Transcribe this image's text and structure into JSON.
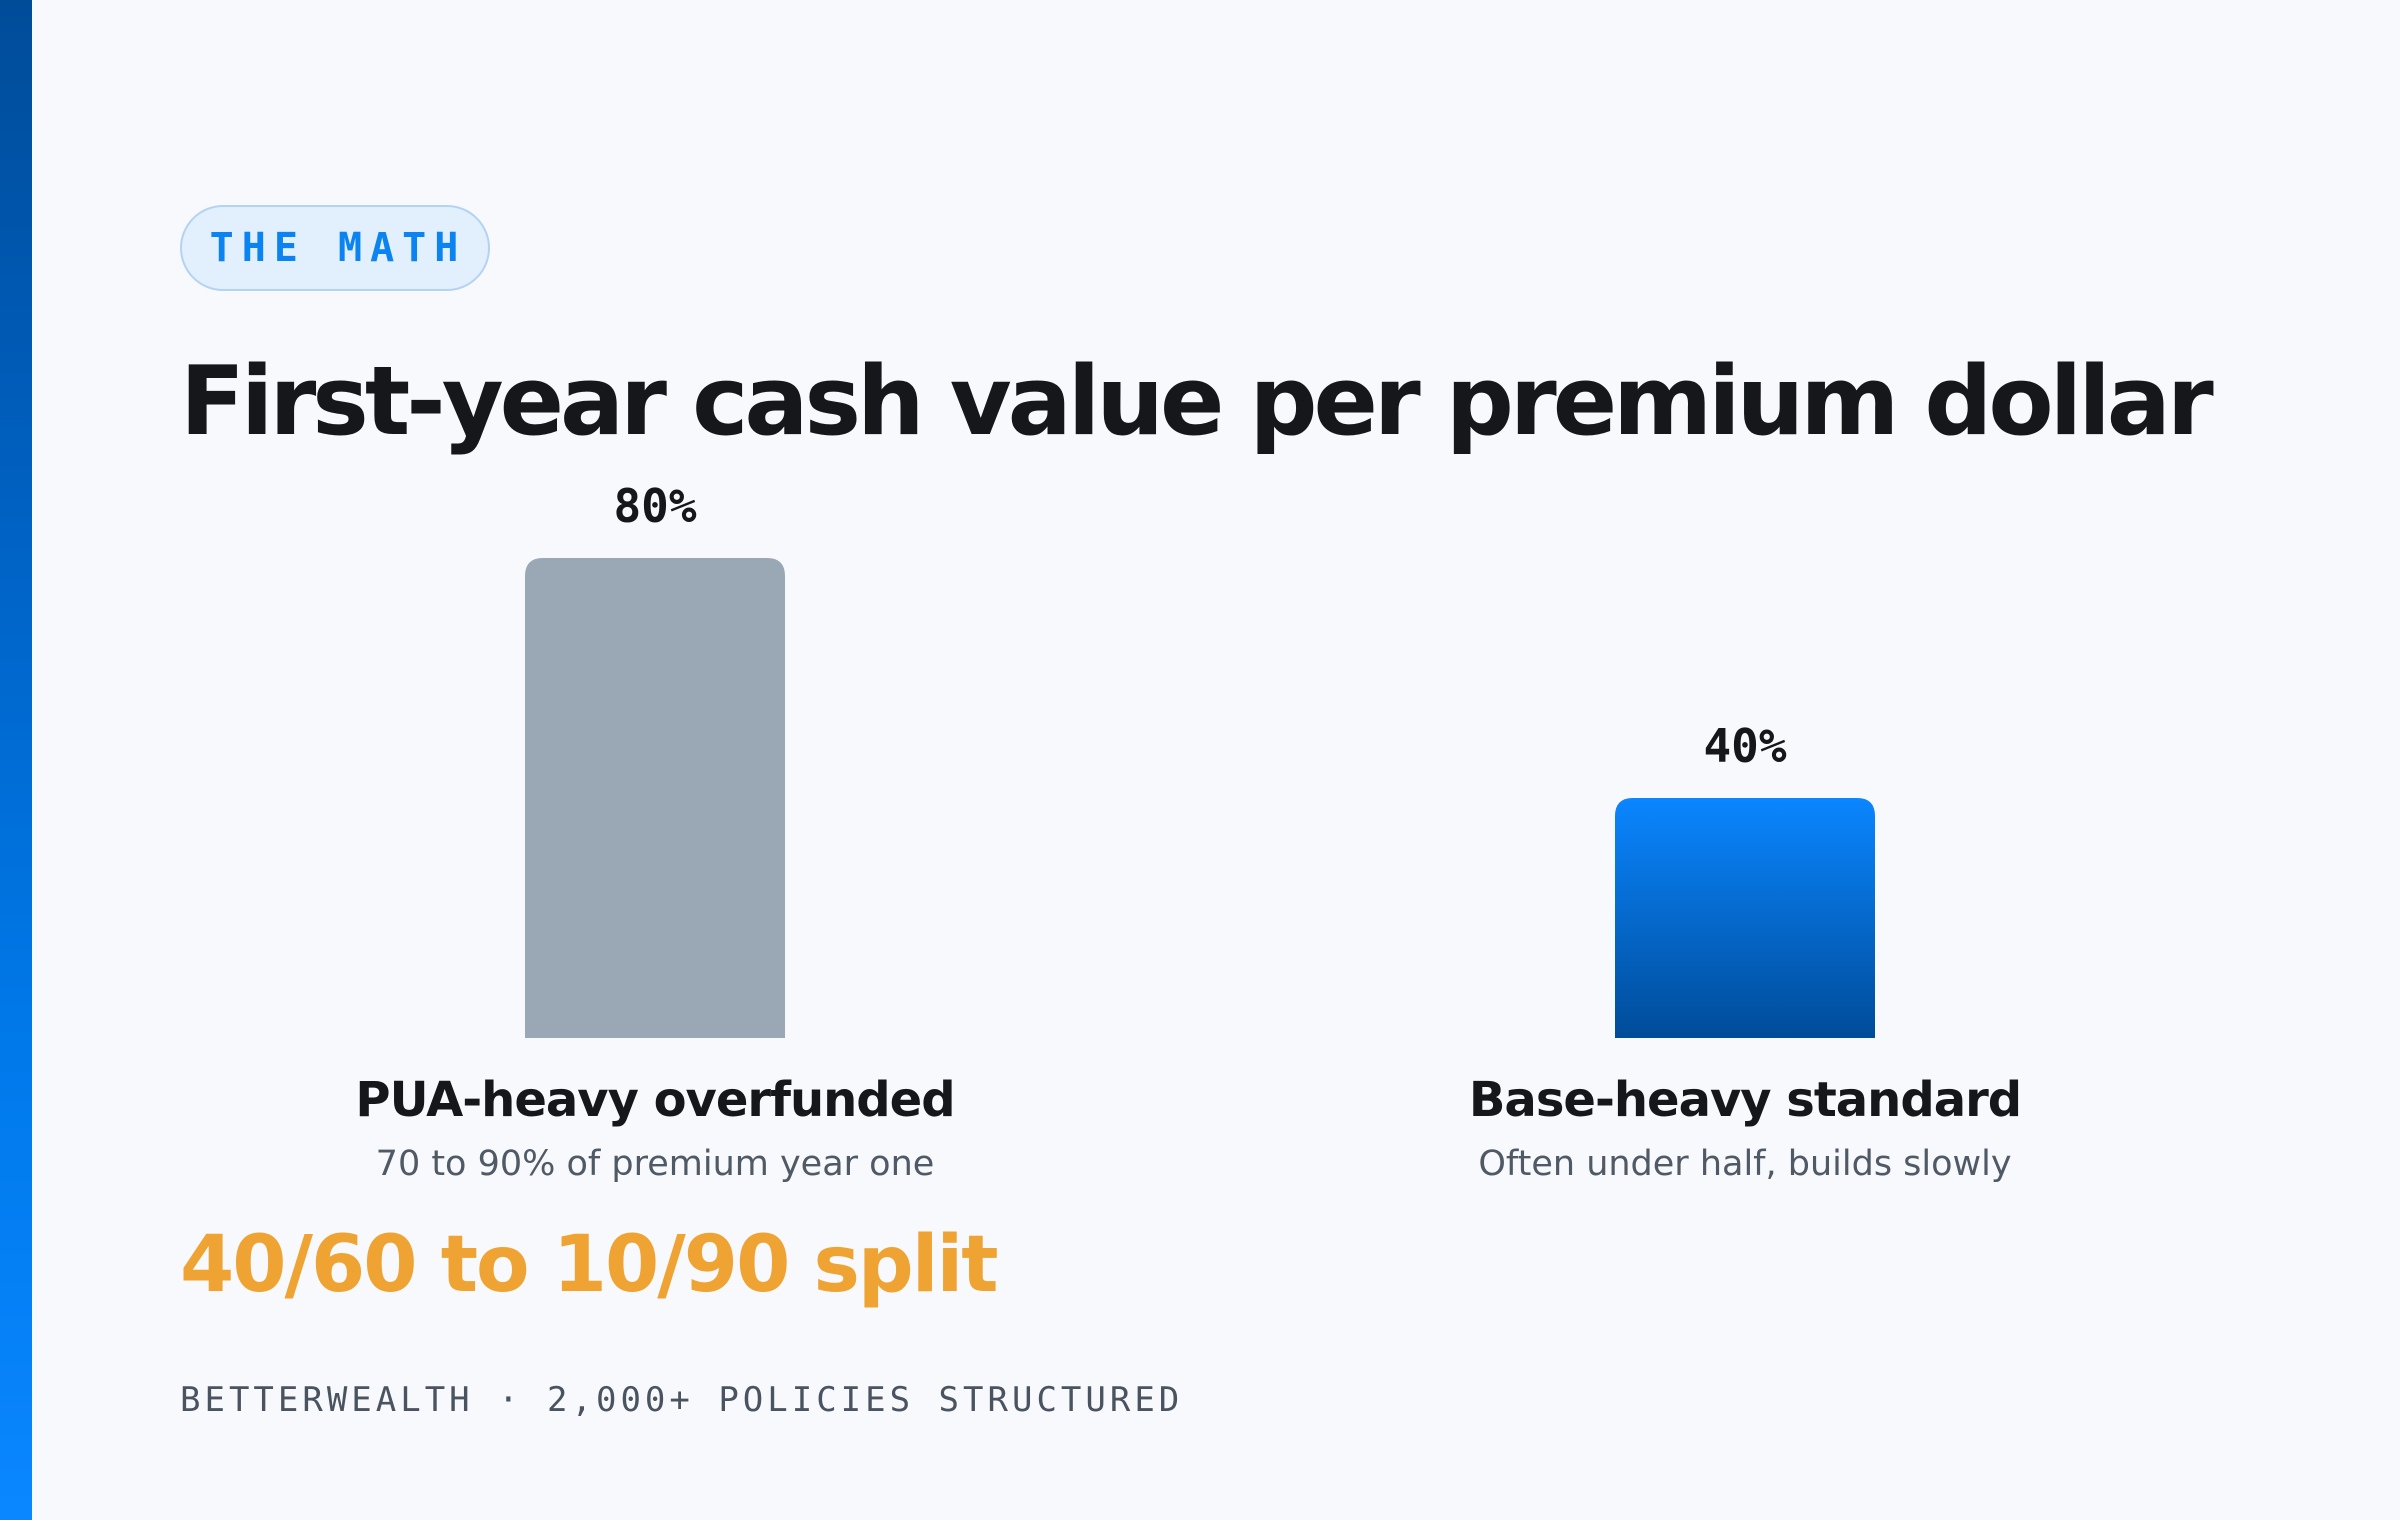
{
  "eyebrow": "THE MATH",
  "footer": "BETTERWEALTH · 2,000+ POLICIES STRUCTURED",
  "highlight": "40/60 to 10/90 split",
  "colors": {
    "accent_stripe": "#0066d6",
    "bar_gray": "#9aa8b5",
    "bar_blue_top": "#0a86ff",
    "bar_blue_bottom": "#004c99",
    "highlight": "#efa332",
    "eyebrow_text": "#0b83f0"
  },
  "chart_data": {
    "type": "bar",
    "title": "First-year cash value per premium dollar",
    "xlabel": "",
    "ylabel": "",
    "ylim": [
      0,
      80
    ],
    "grid": false,
    "categories": [
      "PUA-heavy overfunded",
      "Base-heavy standard"
    ],
    "subtitles": [
      "70 to 90% of premium year one",
      "Often under half, builds slowly"
    ],
    "values": [
      80,
      40
    ],
    "value_labels": [
      "80%",
      "40%"
    ]
  }
}
